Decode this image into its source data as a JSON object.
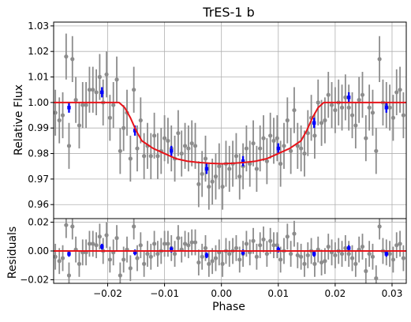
{
  "chart_data": {
    "type": "scatter",
    "title": "TrES-1 b",
    "xlabel": "Phase",
    "colors": {
      "raw": "#8c8c8c",
      "binned": "#0000ff",
      "model": "#e8141a",
      "grid": "#b0b0b0"
    },
    "panels": [
      {
        "name": "flux",
        "ylabel": "Relative Flux",
        "xlim": [
          -0.0295,
          0.0325
        ],
        "ylim": [
          0.9545,
          1.0315
        ],
        "xticks": [
          -0.02,
          -0.01,
          0.0,
          0.01,
          0.02,
          0.03
        ],
        "xtick_labels": [
          "",
          "",
          "",
          "",
          "",
          ""
        ],
        "yticks": [
          0.96,
          0.97,
          0.98,
          0.99,
          1.0,
          1.01,
          1.02,
          1.03
        ],
        "ytick_labels": [
          "0.96",
          "0.97",
          "0.98",
          "0.99",
          "1.00",
          "1.01",
          "1.02",
          "1.03"
        ],
        "grid": true,
        "series": [
          {
            "kind": "raw",
            "x": [
              -0.0292,
              -0.0285,
              -0.0279,
              -0.0273,
              -0.0268,
              -0.0262,
              -0.0256,
              -0.025,
              -0.0244,
              -0.0238,
              -0.0232,
              -0.0226,
              -0.022,
              -0.0214,
              -0.0208,
              -0.0202,
              -0.0196,
              -0.019,
              -0.0184,
              -0.0178,
              -0.0172,
              -0.0166,
              -0.016,
              -0.0154,
              -0.0148,
              -0.0142,
              -0.0136,
              -0.013,
              -0.0124,
              -0.0118,
              -0.0112,
              -0.0106,
              -0.01,
              -0.0094,
              -0.0088,
              -0.0082,
              -0.0076,
              -0.007,
              -0.0064,
              -0.0058,
              -0.0052,
              -0.0046,
              -0.004,
              -0.0034,
              -0.0028,
              -0.0022,
              -0.0016,
              -0.001,
              -0.0004,
              0.0002,
              0.0008,
              0.0014,
              0.002,
              0.0026,
              0.0032,
              0.0038,
              0.0044,
              0.005,
              0.0056,
              0.0062,
              0.0068,
              0.0074,
              0.008,
              0.0086,
              0.0092,
              0.0098,
              0.0104,
              0.011,
              0.0116,
              0.0122,
              0.0128,
              0.0134,
              0.014,
              0.0146,
              0.0152,
              0.0158,
              0.0164,
              0.017,
              0.0176,
              0.0182,
              0.0188,
              0.0194,
              0.02,
              0.0206,
              0.0212,
              0.0218,
              0.0224,
              0.023,
              0.0236,
              0.0242,
              0.0248,
              0.0254,
              0.026,
              0.0266,
              0.0272,
              0.0278,
              0.0284,
              0.029,
              0.0296,
              0.0302,
              0.0308,
              0.0314,
              0.032
            ],
            "y": [
              0.996,
              0.993,
              0.995,
              1.018,
              0.983,
              1.017,
              1.001,
              0.991,
              0.999,
              0.999,
              1.005,
              1.005,
              1.004,
              1.01,
              1.0,
              1.011,
              0.994,
              0.999,
              1.009,
              0.981,
              0.99,
              0.996,
              0.978,
              1.005,
              0.982,
              0.993,
              0.979,
              0.983,
              0.979,
              0.987,
              0.979,
              0.981,
              0.986,
              0.985,
              0.982,
              0.978,
              0.988,
              0.98,
              0.983,
              0.982,
              0.984,
              0.983,
              0.968,
              0.972,
              0.978,
              0.967,
              0.969,
              0.971,
              0.975,
              0.967,
              0.976,
              0.974,
              0.976,
              0.979,
              0.971,
              0.975,
              0.982,
              0.976,
              0.984,
              0.974,
              0.982,
              0.986,
              0.977,
              0.987,
              0.985,
              0.986,
              0.976,
              0.983,
              0.993,
              0.981,
              0.997,
              0.983,
              0.982,
              0.98,
              0.988,
              0.994,
              0.987,
              1.0,
              0.992,
              0.993,
              1.003,
              0.999,
              0.997,
              1.0,
              0.998,
              1.002,
              0.998,
              0.995,
              0.991,
              1.001,
              1.003,
              0.986,
              0.998,
              0.996,
              0.981,
              1.017,
              1.0,
              0.999,
              0.998,
              0.994,
              1.004,
              1.005,
              0.995
            ],
            "yerr": [
              0.009,
              0.009,
              0.009,
              0.009,
              0.009,
              0.009,
              0.009,
              0.009,
              0.009,
              0.009,
              0.009,
              0.009,
              0.009,
              0.009,
              0.009,
              0.009,
              0.009,
              0.009,
              0.009,
              0.009,
              0.009,
              0.009,
              0.009,
              0.009,
              0.009,
              0.009,
              0.009,
              0.009,
              0.009,
              0.009,
              0.009,
              0.009,
              0.009,
              0.009,
              0.009,
              0.009,
              0.009,
              0.009,
              0.009,
              0.009,
              0.009,
              0.009,
              0.009,
              0.009,
              0.009,
              0.009,
              0.009,
              0.009,
              0.009,
              0.009,
              0.009,
              0.009,
              0.009,
              0.009,
              0.009,
              0.009,
              0.009,
              0.009,
              0.009,
              0.009,
              0.009,
              0.009,
              0.009,
              0.009,
              0.009,
              0.009,
              0.009,
              0.009,
              0.009,
              0.009,
              0.009,
              0.009,
              0.009,
              0.009,
              0.009,
              0.009,
              0.009,
              0.009,
              0.009,
              0.009,
              0.009,
              0.009,
              0.009,
              0.009,
              0.009,
              0.009,
              0.009,
              0.009,
              0.009,
              0.009,
              0.009,
              0.009,
              0.009,
              0.009,
              0.009,
              0.009,
              0.009,
              0.009,
              0.009,
              0.009,
              0.009,
              0.009,
              0.009
            ]
          },
          {
            "kind": "binned",
            "x": [
              -0.0268,
              -0.021,
              -0.0152,
              -0.0088,
              -0.0026,
              0.0038,
              0.01,
              0.0163,
              0.0224,
              0.029
            ],
            "y": [
              0.998,
              1.004,
              0.989,
              0.981,
              0.974,
              0.977,
              0.982,
              0.992,
              1.002,
              0.998
            ],
            "yerr": [
              0.002,
              0.002,
              0.002,
              0.002,
              0.002,
              0.002,
              0.002,
              0.002,
              0.002,
              0.002
            ]
          },
          {
            "kind": "model",
            "x": [
              -0.0295,
              -0.02,
              -0.018,
              -0.017,
              -0.016,
              -0.015,
              -0.014,
              -0.012,
              -0.01,
              -0.008,
              -0.006,
              -0.004,
              -0.002,
              0.0,
              0.002,
              0.004,
              0.006,
              0.008,
              0.01,
              0.012,
              0.014,
              0.015,
              0.016,
              0.017,
              0.018,
              0.02,
              0.0325
            ],
            "y": [
              1.0,
              1.0,
              1.0,
              0.998,
              0.994,
              0.989,
              0.985,
              0.982,
              0.98,
              0.978,
              0.977,
              0.9765,
              0.9762,
              0.976,
              0.9762,
              0.9765,
              0.977,
              0.978,
              0.98,
              0.982,
              0.985,
              0.989,
              0.994,
              0.998,
              1.0,
              1.0,
              1.0
            ]
          }
        ]
      },
      {
        "name": "residuals",
        "ylabel": "Residuals",
        "xlim": [
          -0.0295,
          0.0325
        ],
        "ylim": [
          -0.0225,
          0.0225
        ],
        "xticks": [
          -0.02,
          -0.01,
          0.0,
          0.01,
          0.02,
          0.03
        ],
        "xtick_labels": [
          "−0.02",
          "−0.01",
          "0.00",
          "0.01",
          "0.02",
          "0.03"
        ],
        "yticks": [
          -0.02,
          0.0,
          0.02
        ],
        "ytick_labels": [
          "−0.02",
          "0.00",
          "0.02"
        ],
        "grid": true,
        "series": [
          {
            "kind": "raw",
            "x": [
              -0.0292,
              -0.0285,
              -0.0279,
              -0.0273,
              -0.0268,
              -0.0262,
              -0.0256,
              -0.025,
              -0.0244,
              -0.0238,
              -0.0232,
              -0.0226,
              -0.022,
              -0.0214,
              -0.0208,
              -0.0202,
              -0.0196,
              -0.019,
              -0.0184,
              -0.0178,
              -0.0172,
              -0.0166,
              -0.016,
              -0.0154,
              -0.0148,
              -0.0142,
              -0.0136,
              -0.013,
              -0.0124,
              -0.0118,
              -0.0112,
              -0.0106,
              -0.01,
              -0.0094,
              -0.0088,
              -0.0082,
              -0.0076,
              -0.007,
              -0.0064,
              -0.0058,
              -0.0052,
              -0.0046,
              -0.004,
              -0.0034,
              -0.0028,
              -0.0022,
              -0.0016,
              -0.001,
              -0.0004,
              0.0002,
              0.0008,
              0.0014,
              0.002,
              0.0026,
              0.0032,
              0.0038,
              0.0044,
              0.005,
              0.0056,
              0.0062,
              0.0068,
              0.0074,
              0.008,
              0.0086,
              0.0092,
              0.0098,
              0.0104,
              0.011,
              0.0116,
              0.0122,
              0.0128,
              0.0134,
              0.014,
              0.0146,
              0.0152,
              0.0158,
              0.0164,
              0.017,
              0.0176,
              0.0182,
              0.0188,
              0.0194,
              0.02,
              0.0206,
              0.0212,
              0.0218,
              0.0224,
              0.023,
              0.0236,
              0.0242,
              0.0248,
              0.0254,
              0.026,
              0.0266,
              0.0272,
              0.0278,
              0.0284,
              0.029,
              0.0296,
              0.0302,
              0.0308,
              0.0314,
              0.032
            ],
            "y": [
              -0.004,
              -0.007,
              -0.005,
              0.018,
              -0.017,
              0.017,
              0.001,
              -0.009,
              -0.001,
              -0.001,
              0.005,
              0.005,
              0.004,
              0.01,
              0.0,
              0.011,
              -0.006,
              -0.001,
              0.009,
              -0.017,
              -0.006,
              0.001,
              -0.012,
              0.017,
              -0.005,
              0.004,
              -0.009,
              -0.002,
              -0.004,
              0.005,
              -0.002,
              0.0,
              0.005,
              0.005,
              0.002,
              -0.002,
              0.009,
              0.001,
              0.005,
              0.004,
              0.006,
              0.006,
              -0.008,
              -0.004,
              0.002,
              -0.009,
              -0.007,
              -0.005,
              -0.001,
              -0.009,
              0.0,
              -0.002,
              0.0,
              0.002,
              -0.006,
              -0.002,
              0.005,
              -0.001,
              0.007,
              -0.004,
              0.004,
              0.008,
              -0.002,
              0.007,
              0.004,
              0.004,
              -0.006,
              0.0,
              0.01,
              -0.002,
              0.012,
              -0.003,
              -0.004,
              -0.009,
              -0.003,
              0.0,
              -0.009,
              0.001,
              -0.008,
              -0.007,
              0.003,
              -0.001,
              -0.003,
              0.0,
              -0.002,
              0.002,
              -0.002,
              -0.005,
              -0.009,
              0.001,
              0.003,
              -0.014,
              -0.002,
              -0.004,
              -0.019,
              0.017,
              0.0,
              -0.001,
              -0.002,
              -0.006,
              0.004,
              0.005,
              -0.005
            ],
            "yerr": [
              0.009,
              0.009,
              0.009,
              0.009,
              0.009,
              0.009,
              0.009,
              0.009,
              0.009,
              0.009,
              0.009,
              0.009,
              0.009,
              0.009,
              0.009,
              0.009,
              0.009,
              0.009,
              0.009,
              0.009,
              0.009,
              0.009,
              0.009,
              0.009,
              0.009,
              0.009,
              0.009,
              0.009,
              0.009,
              0.009,
              0.009,
              0.009,
              0.009,
              0.009,
              0.009,
              0.009,
              0.009,
              0.009,
              0.009,
              0.009,
              0.009,
              0.009,
              0.009,
              0.009,
              0.009,
              0.009,
              0.009,
              0.009,
              0.009,
              0.009,
              0.009,
              0.009,
              0.009,
              0.009,
              0.009,
              0.009,
              0.009,
              0.009,
              0.009,
              0.009,
              0.009,
              0.009,
              0.009,
              0.009,
              0.009,
              0.009,
              0.009,
              0.009,
              0.009,
              0.009,
              0.009,
              0.009,
              0.009,
              0.009,
              0.009,
              0.009,
              0.009,
              0.009,
              0.009,
              0.009,
              0.009,
              0.009,
              0.009,
              0.009,
              0.009,
              0.009,
              0.009,
              0.009,
              0.009,
              0.009,
              0.009,
              0.009,
              0.009,
              0.009,
              0.009,
              0.009,
              0.009,
              0.009,
              0.009,
              0.009,
              0.009,
              0.009,
              0.009
            ]
          },
          {
            "kind": "binned",
            "x": [
              -0.0268,
              -0.021,
              -0.0152,
              -0.0088,
              -0.0026,
              0.0038,
              0.01,
              0.0163,
              0.0224,
              0.029
            ],
            "y": [
              -0.002,
              0.003,
              -0.001,
              0.001,
              -0.003,
              -0.001,
              0.001,
              -0.002,
              0.002,
              -0.002
            ],
            "yerr": [
              0.002,
              0.002,
              0.002,
              0.002,
              0.002,
              0.002,
              0.002,
              0.002,
              0.002,
              0.002
            ]
          },
          {
            "kind": "model",
            "x": [
              -0.0295,
              0.0325
            ],
            "y": [
              0.0,
              0.0
            ]
          }
        ]
      }
    ]
  }
}
